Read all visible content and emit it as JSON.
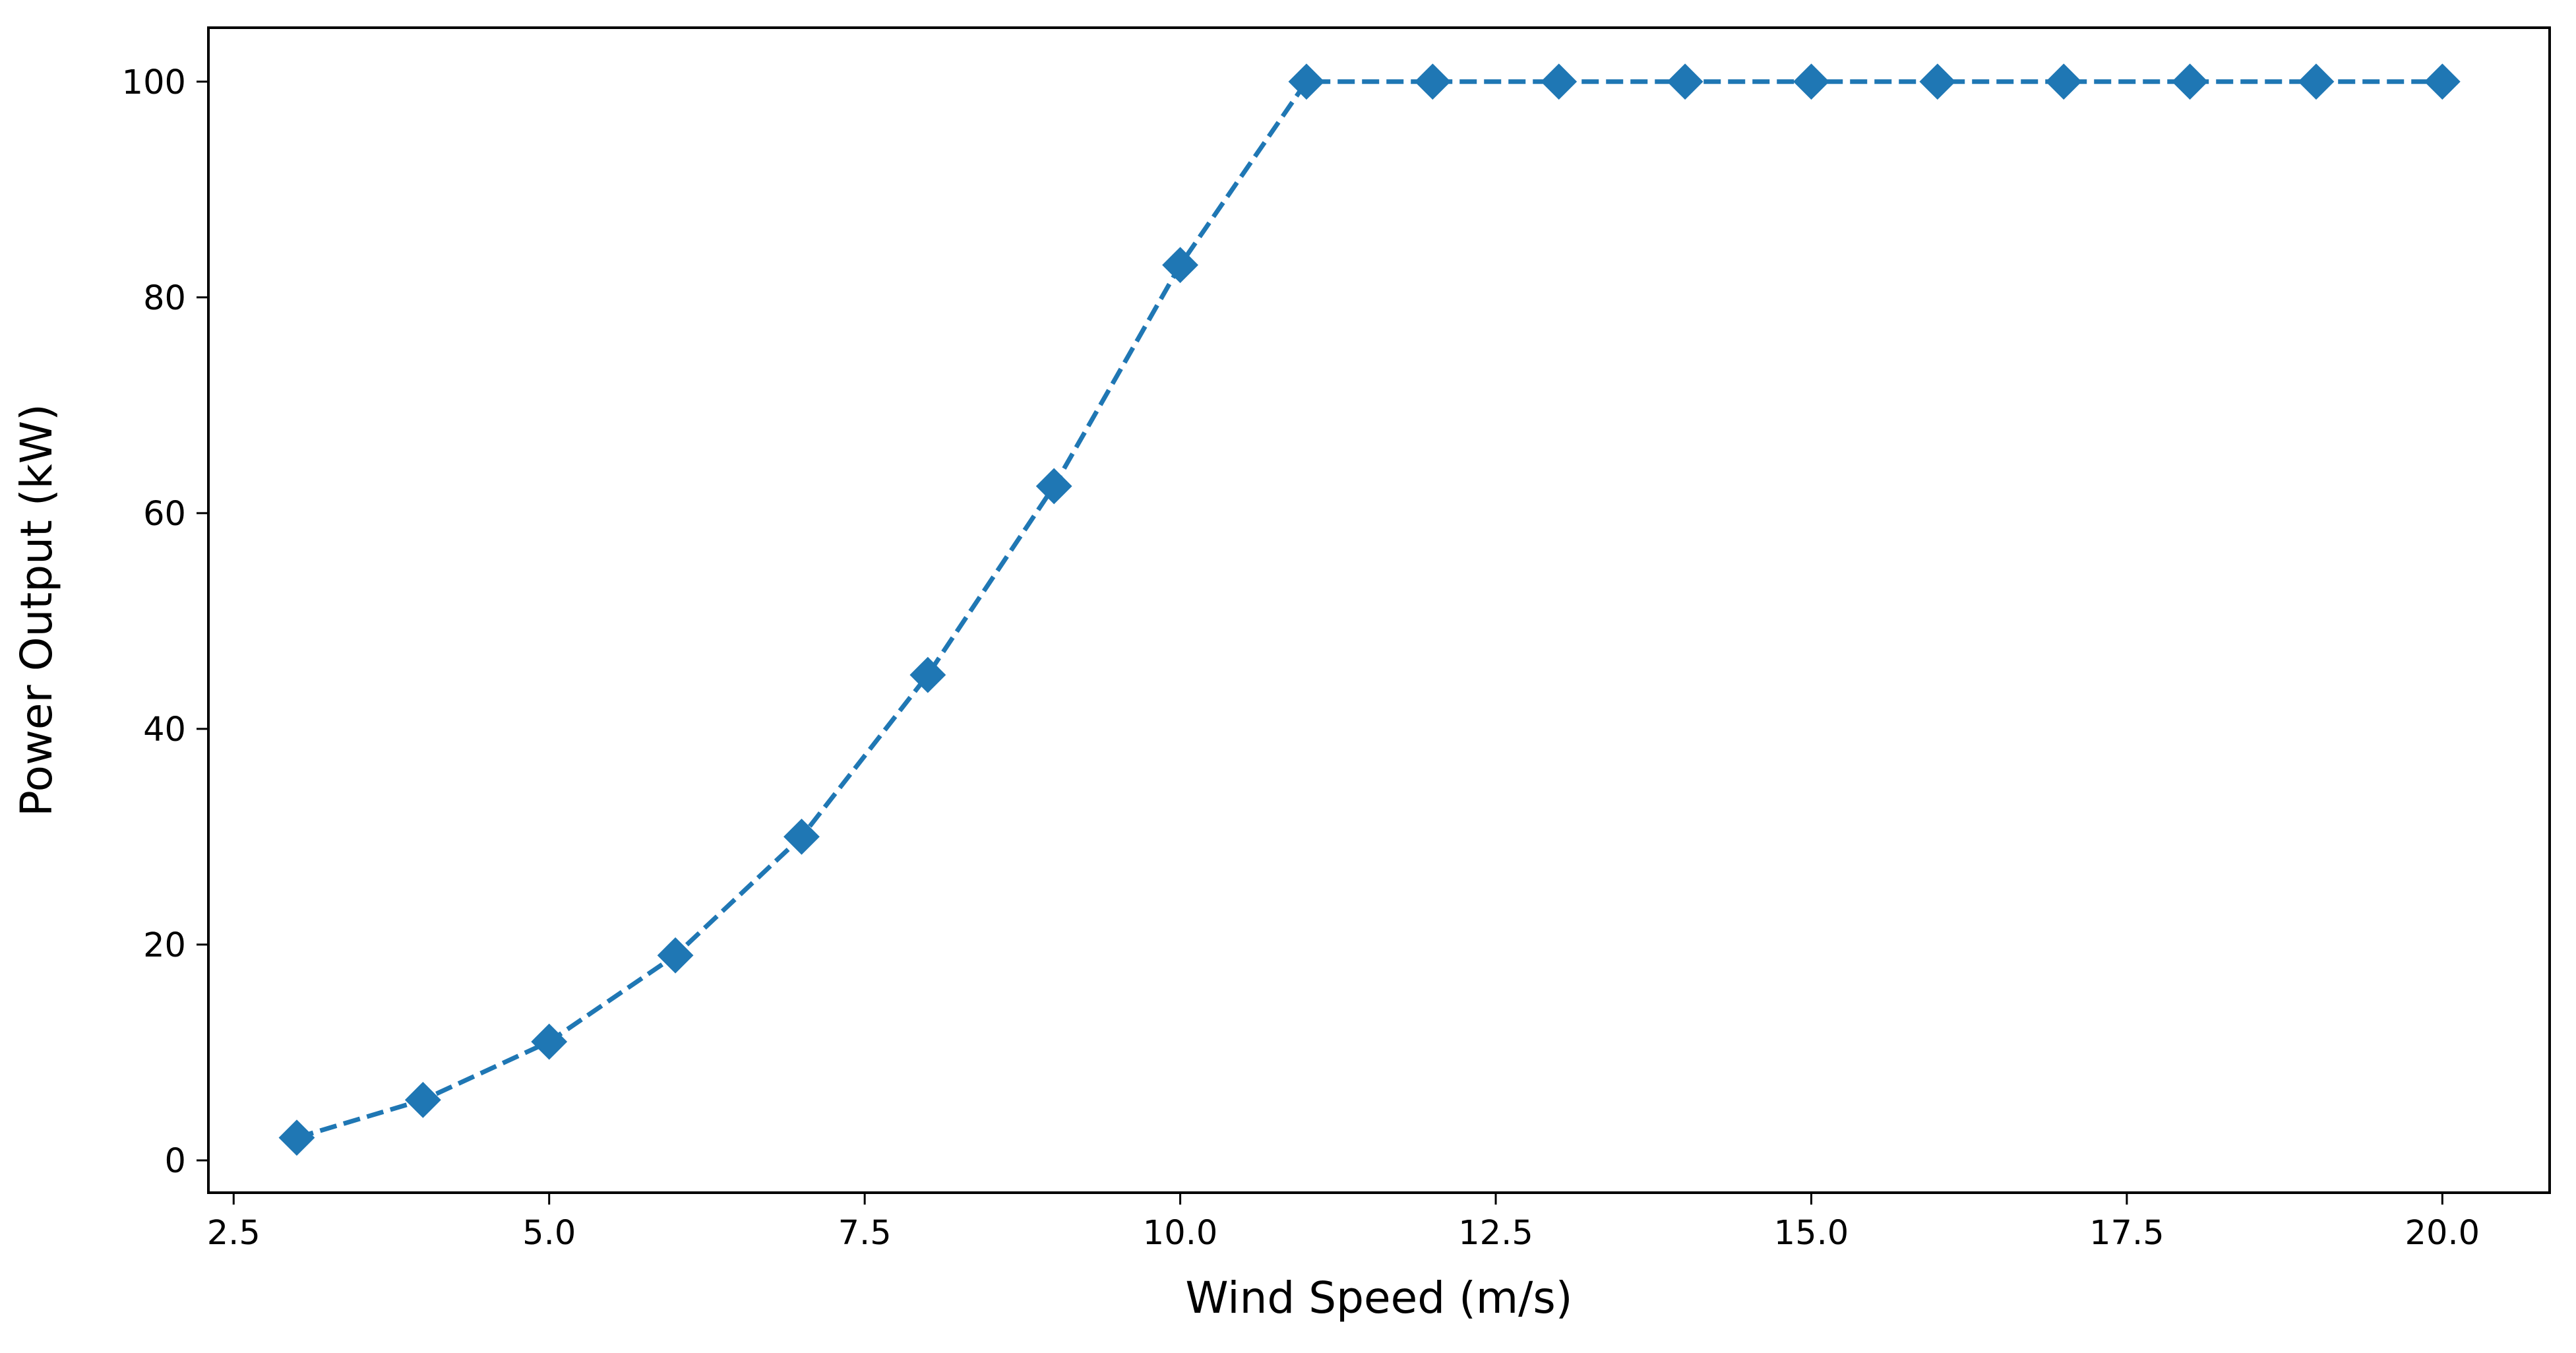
{
  "chart_data": {
    "type": "line",
    "title": "",
    "xlabel": "Wind Speed (m/s)",
    "ylabel": "Power Output (kW)",
    "xlim": [
      2.3,
      20.85
    ],
    "ylim": [
      -3,
      105
    ],
    "xticks": [
      2.5,
      5.0,
      7.5,
      10.0,
      12.5,
      15.0,
      17.5,
      20.0
    ],
    "xtick_labels": [
      "2.5",
      "5.0",
      "7.5",
      "10.0",
      "12.5",
      "15.0",
      "17.5",
      "20.0"
    ],
    "yticks": [
      0,
      20,
      40,
      60,
      80,
      100
    ],
    "ytick_labels": [
      "0",
      "20",
      "40",
      "60",
      "80",
      "100"
    ],
    "grid": false,
    "legend": "none",
    "series": [
      {
        "color": "#1f77b4",
        "line_style": "dashed",
        "marker": "diamond",
        "x": [
          3,
          4,
          5,
          6,
          7,
          8,
          9,
          10,
          11,
          12,
          13,
          14,
          15,
          16,
          17,
          18,
          19,
          20
        ],
        "y": [
          2.1,
          5.6,
          11.0,
          19.0,
          30.0,
          45.0,
          62.5,
          83.0,
          100,
          100,
          100,
          100,
          100,
          100,
          100,
          100,
          100,
          100
        ]
      }
    ]
  }
}
